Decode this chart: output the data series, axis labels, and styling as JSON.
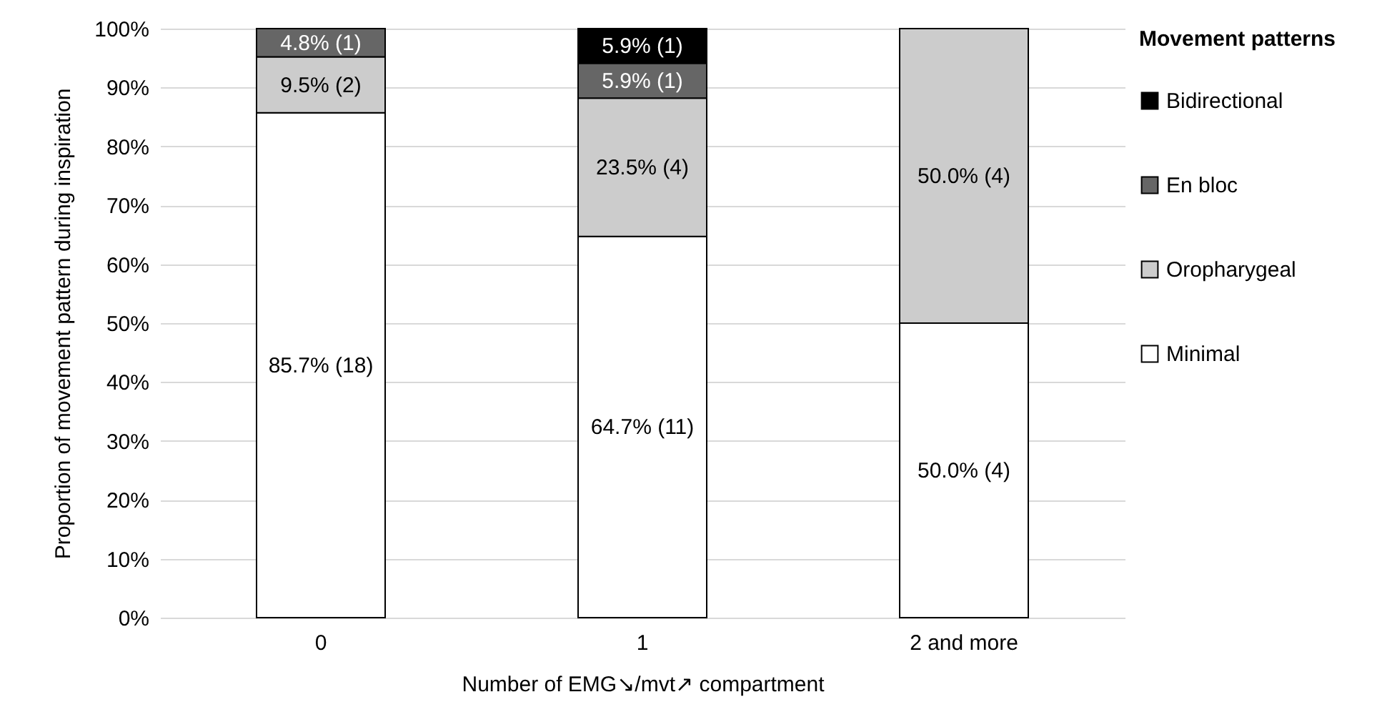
{
  "chart_data": {
    "type": "bar",
    "stacked": true,
    "categories": [
      "0",
      "1",
      "2 and more"
    ],
    "xlabel": "Number of EMG↘/mvt↗ compartment",
    "ylabel": "Proportion of movement pattern during inspiration",
    "legend_title": "Movement patterns",
    "series": [
      {
        "name": "Minimal",
        "color": "#ffffff",
        "values": [
          85.7,
          64.7,
          50.0
        ],
        "value_labels": [
          "85.7% (18)",
          "64.7% (11)",
          "50.0% (4)"
        ]
      },
      {
        "name": "Oropharygeal",
        "color": "#cccccc",
        "values": [
          9.5,
          23.5,
          50.0
        ],
        "value_labels": [
          "9.5% (2)",
          "23.5% (4)",
          "50.0% (4)"
        ]
      },
      {
        "name": "En bloc",
        "color": "#666666",
        "values": [
          4.8,
          5.9,
          null
        ],
        "value_labels": [
          "4.8% (1)",
          "5.9% (1)",
          null
        ]
      },
      {
        "name": "Bidirectional",
        "color": "#000000",
        "values": [
          null,
          5.9,
          null
        ],
        "value_labels": [
          null,
          "5.9% (1)",
          null
        ]
      }
    ],
    "ylim": [
      0,
      100
    ],
    "yticks": [
      {
        "value": 0,
        "label": "0%"
      },
      {
        "value": 10,
        "label": "10%"
      },
      {
        "value": 20,
        "label": "20%"
      },
      {
        "value": 30,
        "label": "30%"
      },
      {
        "value": 40,
        "label": "40%"
      },
      {
        "value": 50,
        "label": "50%"
      },
      {
        "value": 60,
        "label": "60%"
      },
      {
        "value": 70,
        "label": "70%"
      },
      {
        "value": 80,
        "label": "80%"
      },
      {
        "value": 90,
        "label": "90%"
      },
      {
        "value": 100,
        "label": "100%"
      }
    ],
    "grid": "y",
    "legend": "right"
  }
}
